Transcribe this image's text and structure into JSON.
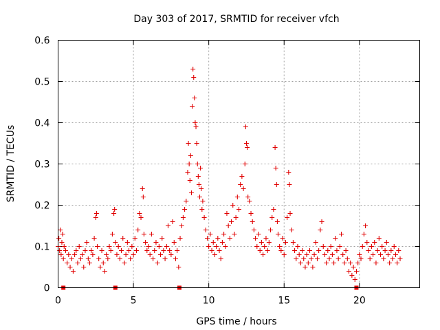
{
  "chart_data": {
    "type": "scatter",
    "title": "Day 303 of 2017, SRMTID for receiver vfch",
    "xlabel": "GPS time / hours",
    "ylabel": "SRMTID / TECUs",
    "xlim": [
      0,
      24
    ],
    "ylim": [
      0,
      0.6
    ],
    "xticks": [
      0,
      5,
      10,
      15,
      20
    ],
    "yticks": [
      0,
      0.1,
      0.2,
      0.3,
      0.4,
      0.5,
      0.6
    ],
    "xtick_labels": [
      "0",
      "5",
      "10",
      "15",
      "20"
    ],
    "ytick_labels": [
      "0",
      "0.1",
      "0.2",
      "0.3",
      "0.4",
      "0.5",
      "0.6"
    ],
    "grid": true,
    "marker": "+",
    "color": "#e00000",
    "data_gap_markers_x": [
      0.35,
      3.8,
      8.05,
      19.8
    ],
    "series": [
      {
        "name": "SRMTID",
        "points": [
          [
            0.0,
            0.1
          ],
          [
            0.05,
            0.12
          ],
          [
            0.1,
            0.09
          ],
          [
            0.15,
            0.14
          ],
          [
            0.2,
            0.08
          ],
          [
            0.25,
            0.11
          ],
          [
            0.3,
            0.13
          ],
          [
            0.35,
            0.07
          ],
          [
            0.4,
            0.1
          ],
          [
            0.5,
            0.09
          ],
          [
            0.6,
            0.06
          ],
          [
            0.7,
            0.08
          ],
          [
            0.8,
            0.05
          ],
          [
            0.9,
            0.07
          ],
          [
            1.0,
            0.04
          ],
          [
            1.1,
            0.08
          ],
          [
            1.2,
            0.09
          ],
          [
            1.3,
            0.06
          ],
          [
            1.4,
            0.1
          ],
          [
            1.5,
            0.07
          ],
          [
            1.6,
            0.08
          ],
          [
            1.7,
            0.05
          ],
          [
            1.8,
            0.09
          ],
          [
            1.9,
            0.11
          ],
          [
            2.0,
            0.07
          ],
          [
            2.1,
            0.06
          ],
          [
            2.2,
            0.09
          ],
          [
            2.3,
            0.08
          ],
          [
            2.4,
            0.12
          ],
          [
            2.5,
            0.17
          ],
          [
            2.55,
            0.18
          ],
          [
            2.6,
            0.1
          ],
          [
            2.7,
            0.07
          ],
          [
            2.8,
            0.05
          ],
          [
            2.9,
            0.09
          ],
          [
            3.0,
            0.06
          ],
          [
            3.1,
            0.04
          ],
          [
            3.2,
            0.08
          ],
          [
            3.3,
            0.07
          ],
          [
            3.4,
            0.1
          ],
          [
            3.5,
            0.09
          ],
          [
            3.6,
            0.13
          ],
          [
            3.7,
            0.18
          ],
          [
            3.75,
            0.19
          ],
          [
            3.8,
            0.11
          ],
          [
            3.9,
            0.08
          ],
          [
            4.0,
            0.1
          ],
          [
            4.1,
            0.07
          ],
          [
            4.2,
            0.09
          ],
          [
            4.3,
            0.12
          ],
          [
            4.4,
            0.06
          ],
          [
            4.5,
            0.08
          ],
          [
            4.6,
            0.11
          ],
          [
            4.7,
            0.09
          ],
          [
            4.8,
            0.07
          ],
          [
            4.9,
            0.1
          ],
          [
            5.0,
            0.08
          ],
          [
            5.1,
            0.12
          ],
          [
            5.2,
            0.09
          ],
          [
            5.3,
            0.14
          ],
          [
            5.4,
            0.18
          ],
          [
            5.5,
            0.17
          ],
          [
            5.6,
            0.24
          ],
          [
            5.65,
            0.22
          ],
          [
            5.7,
            0.13
          ],
          [
            5.8,
            0.11
          ],
          [
            5.9,
            0.09
          ],
          [
            6.0,
            0.1
          ],
          [
            6.1,
            0.08
          ],
          [
            6.2,
            0.13
          ],
          [
            6.3,
            0.07
          ],
          [
            6.4,
            0.09
          ],
          [
            6.5,
            0.11
          ],
          [
            6.6,
            0.06
          ],
          [
            6.7,
            0.1
          ],
          [
            6.8,
            0.08
          ],
          [
            6.9,
            0.12
          ],
          [
            7.0,
            0.09
          ],
          [
            7.1,
            0.07
          ],
          [
            7.2,
            0.1
          ],
          [
            7.3,
            0.15
          ],
          [
            7.4,
            0.09
          ],
          [
            7.5,
            0.08
          ],
          [
            7.6,
            0.16
          ],
          [
            7.7,
            0.11
          ],
          [
            7.8,
            0.07
          ],
          [
            7.9,
            0.09
          ],
          [
            8.0,
            0.05
          ],
          [
            8.1,
            0.12
          ],
          [
            8.2,
            0.15
          ],
          [
            8.3,
            0.17
          ],
          [
            8.4,
            0.19
          ],
          [
            8.5,
            0.21
          ],
          [
            8.6,
            0.28
          ],
          [
            8.65,
            0.35
          ],
          [
            8.7,
            0.3
          ],
          [
            8.75,
            0.26
          ],
          [
            8.8,
            0.32
          ],
          [
            8.85,
            0.23
          ],
          [
            8.9,
            0.44
          ],
          [
            8.95,
            0.53
          ],
          [
            9.0,
            0.51
          ],
          [
            9.05,
            0.46
          ],
          [
            9.1,
            0.4
          ],
          [
            9.15,
            0.39
          ],
          [
            9.2,
            0.35
          ],
          [
            9.25,
            0.3
          ],
          [
            9.3,
            0.27
          ],
          [
            9.35,
            0.25
          ],
          [
            9.4,
            0.22
          ],
          [
            9.45,
            0.29
          ],
          [
            9.5,
            0.24
          ],
          [
            9.55,
            0.19
          ],
          [
            9.6,
            0.21
          ],
          [
            9.7,
            0.17
          ],
          [
            9.8,
            0.14
          ],
          [
            9.9,
            0.12
          ],
          [
            10.0,
            0.1
          ],
          [
            10.1,
            0.13
          ],
          [
            10.2,
            0.09
          ],
          [
            10.3,
            0.11
          ],
          [
            10.4,
            0.08
          ],
          [
            10.5,
            0.1
          ],
          [
            10.6,
            0.12
          ],
          [
            10.7,
            0.09
          ],
          [
            10.8,
            0.07
          ],
          [
            10.9,
            0.11
          ],
          [
            11.0,
            0.13
          ],
          [
            11.1,
            0.1
          ],
          [
            11.2,
            0.18
          ],
          [
            11.3,
            0.15
          ],
          [
            11.4,
            0.12
          ],
          [
            11.5,
            0.16
          ],
          [
            11.6,
            0.2
          ],
          [
            11.7,
            0.13
          ],
          [
            11.8,
            0.17
          ],
          [
            11.9,
            0.22
          ],
          [
            12.0,
            0.19
          ],
          [
            12.1,
            0.25
          ],
          [
            12.2,
            0.27
          ],
          [
            12.3,
            0.24
          ],
          [
            12.4,
            0.3
          ],
          [
            12.45,
            0.39
          ],
          [
            12.5,
            0.35
          ],
          [
            12.55,
            0.34
          ],
          [
            12.6,
            0.22
          ],
          [
            12.7,
            0.21
          ],
          [
            12.8,
            0.18
          ],
          [
            12.9,
            0.16
          ],
          [
            13.0,
            0.14
          ],
          [
            13.1,
            0.12
          ],
          [
            13.2,
            0.1
          ],
          [
            13.3,
            0.13
          ],
          [
            13.4,
            0.09
          ],
          [
            13.5,
            0.11
          ],
          [
            13.6,
            0.08
          ],
          [
            13.7,
            0.1
          ],
          [
            13.8,
            0.12
          ],
          [
            13.9,
            0.09
          ],
          [
            14.0,
            0.11
          ],
          [
            14.1,
            0.14
          ],
          [
            14.2,
            0.17
          ],
          [
            14.3,
            0.19
          ],
          [
            14.4,
            0.34
          ],
          [
            14.45,
            0.29
          ],
          [
            14.5,
            0.25
          ],
          [
            14.55,
            0.16
          ],
          [
            14.6,
            0.13
          ],
          [
            14.7,
            0.1
          ],
          [
            14.8,
            0.09
          ],
          [
            14.9,
            0.12
          ],
          [
            15.0,
            0.08
          ],
          [
            15.1,
            0.11
          ],
          [
            15.2,
            0.17
          ],
          [
            15.3,
            0.28
          ],
          [
            15.35,
            0.25
          ],
          [
            15.4,
            0.18
          ],
          [
            15.5,
            0.14
          ],
          [
            15.6,
            0.11
          ],
          [
            15.7,
            0.09
          ],
          [
            15.8,
            0.07
          ],
          [
            15.9,
            0.1
          ],
          [
            16.0,
            0.08
          ],
          [
            16.1,
            0.06
          ],
          [
            16.2,
            0.09
          ],
          [
            16.3,
            0.07
          ],
          [
            16.4,
            0.05
          ],
          [
            16.5,
            0.08
          ],
          [
            16.6,
            0.06
          ],
          [
            16.7,
            0.09
          ],
          [
            16.8,
            0.07
          ],
          [
            16.9,
            0.05
          ],
          [
            17.0,
            0.08
          ],
          [
            17.1,
            0.11
          ],
          [
            17.2,
            0.07
          ],
          [
            17.3,
            0.09
          ],
          [
            17.4,
            0.14
          ],
          [
            17.5,
            0.16
          ],
          [
            17.6,
            0.1
          ],
          [
            17.7,
            0.08
          ],
          [
            17.8,
            0.06
          ],
          [
            17.9,
            0.09
          ],
          [
            18.0,
            0.07
          ],
          [
            18.1,
            0.1
          ],
          [
            18.2,
            0.08
          ],
          [
            18.3,
            0.06
          ],
          [
            18.4,
            0.12
          ],
          [
            18.5,
            0.09
          ],
          [
            18.6,
            0.07
          ],
          [
            18.7,
            0.1
          ],
          [
            18.8,
            0.13
          ],
          [
            18.9,
            0.08
          ],
          [
            19.0,
            0.06
          ],
          [
            19.1,
            0.09
          ],
          [
            19.2,
            0.07
          ],
          [
            19.3,
            0.04
          ],
          [
            19.4,
            0.06
          ],
          [
            19.5,
            0.03
          ],
          [
            19.6,
            0.05
          ],
          [
            19.7,
            0.02
          ],
          [
            19.8,
            0.04
          ],
          [
            19.9,
            0.06
          ],
          [
            20.0,
            0.08
          ],
          [
            20.1,
            0.07
          ],
          [
            20.2,
            0.1
          ],
          [
            20.3,
            0.13
          ],
          [
            20.4,
            0.15
          ],
          [
            20.5,
            0.11
          ],
          [
            20.6,
            0.09
          ],
          [
            20.7,
            0.07
          ],
          [
            20.8,
            0.1
          ],
          [
            20.9,
            0.08
          ],
          [
            21.0,
            0.11
          ],
          [
            21.1,
            0.06
          ],
          [
            21.2,
            0.09
          ],
          [
            21.3,
            0.12
          ],
          [
            21.4,
            0.08
          ],
          [
            21.5,
            0.1
          ],
          [
            21.6,
            0.07
          ],
          [
            21.7,
            0.09
          ],
          [
            21.8,
            0.11
          ],
          [
            21.9,
            0.08
          ],
          [
            22.0,
            0.06
          ],
          [
            22.1,
            0.09
          ],
          [
            22.2,
            0.07
          ],
          [
            22.3,
            0.1
          ],
          [
            22.4,
            0.08
          ],
          [
            22.5,
            0.06
          ],
          [
            22.6,
            0.09
          ],
          [
            22.7,
            0.07
          ]
        ]
      }
    ]
  }
}
